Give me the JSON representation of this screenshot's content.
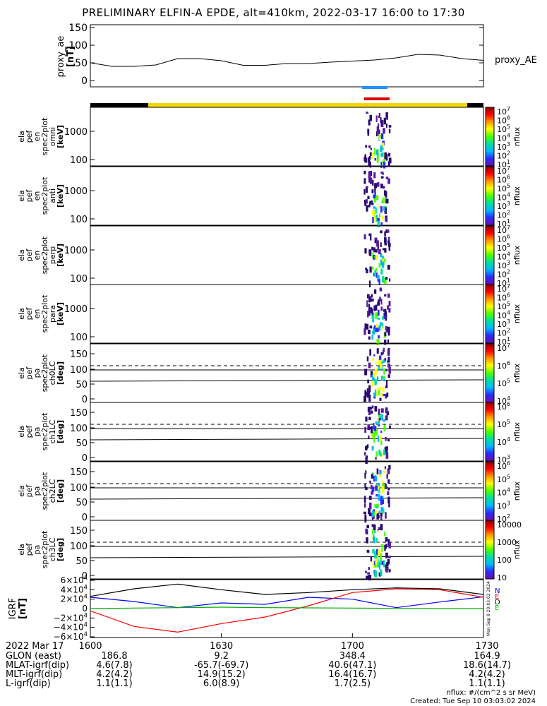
{
  "title": "PRELIMINARY ELFIN-A EPDE, alt=410km, 2022-03-17 16:00 to 17:30",
  "proxy_panel": {
    "ylabel": "proxy_ae",
    "unit": "[nT]",
    "legend": "proxy_AE",
    "ticks": [
      "150",
      "100",
      "50",
      "0"
    ]
  },
  "spec_panels": [
    {
      "label": [
        "ela",
        "pef",
        "en",
        "spec2plot",
        "omni",
        "[keV]"
      ],
      "ticks": [
        "1000",
        "100"
      ],
      "cbar": [
        "10^7",
        "10^6",
        "10^5",
        "10^4",
        "10^3",
        "10^2",
        "10^1"
      ],
      "cbar_label": "nflux"
    },
    {
      "label": [
        "ela",
        "pef",
        "en",
        "spec2plot",
        "anti",
        "[keV]"
      ],
      "ticks": [
        "1000",
        "100"
      ],
      "cbar": [
        "10^7",
        "10^6",
        "10^5",
        "10^4",
        "10^3",
        "10^2",
        "10^1"
      ],
      "cbar_label": "nflux"
    },
    {
      "label": [
        "ela",
        "pef",
        "en",
        "spec2plot",
        "perp",
        "[keV]"
      ],
      "ticks": [
        "1000",
        "100"
      ],
      "cbar": [
        "10^7",
        "10^6",
        "10^5",
        "10^4",
        "10^3",
        "10^2",
        "10^1"
      ],
      "cbar_label": "nflux"
    },
    {
      "label": [
        "ela",
        "pef",
        "en",
        "spec2plot",
        "para",
        "[keV]"
      ],
      "ticks": [
        "1000",
        "100"
      ],
      "cbar": [
        "10^7",
        "10^6",
        "10^5",
        "10^4",
        "10^3",
        "10^2",
        "10^1"
      ],
      "cbar_label": "nflux"
    },
    {
      "label": [
        "ela",
        "pef",
        "pa",
        "spec2plot",
        "ch0LC",
        "[deg]"
      ],
      "ticks": [
        "150",
        "100",
        "50",
        "0"
      ],
      "cbar": [
        "10^7",
        "10^6",
        "10^5",
        "10^4"
      ],
      "cbar_label": "nflux"
    },
    {
      "label": [
        "ela",
        "pef",
        "pa",
        "spec2plot",
        "ch1LC",
        "[deg]"
      ],
      "ticks": [
        "150",
        "100",
        "50",
        "0"
      ],
      "cbar": [
        "10^6",
        "10^5",
        "10^4",
        "10^3"
      ],
      "cbar_label": "nflux"
    },
    {
      "label": [
        "ela",
        "pef",
        "pa",
        "spec2plot",
        "ch2LC",
        "[deg]"
      ],
      "ticks": [
        "150",
        "100",
        "50",
        "0"
      ],
      "cbar": [
        "10^6",
        "10^5",
        "10^4",
        "10^3",
        "10^2"
      ],
      "cbar_label": "nflux"
    },
    {
      "label": [
        "ela",
        "pef",
        "pa",
        "spec2plot",
        "ch3LC",
        "[deg]"
      ],
      "ticks": [
        "150",
        "100",
        "50",
        "0"
      ],
      "cbar": [
        "10000",
        "1000",
        "100",
        "10"
      ],
      "cbar_label": "nflux"
    }
  ],
  "igrf_panel": {
    "ylabel": "IGRF",
    "unit": "[nT]",
    "ticks": [
      "6×10^4",
      "4×10^4",
      "2×10^4",
      "0",
      "−2×10^4",
      "−4×10^4",
      "−6×10^4"
    ],
    "legend": [
      "N",
      "E",
      "D",
      "E"
    ],
    "legend_colors": [
      "#0000ff",
      "#ff0000",
      "#000000",
      "#00cc00"
    ],
    "stamp": "Mon Sep 9 20:03:02 2024"
  },
  "footer": {
    "row_labels": [
      "2022 Mar 17",
      "GLON (east)",
      "MLAT-igrf(dip)",
      "MLT-igrf(dip)",
      "L-igrf(dip)"
    ],
    "columns": [
      {
        "time": "1600",
        "glon": "186.8",
        "mlat": "4.6(7.8)",
        "mlt": "4.2(4.2)",
        "l": "1.1(1.1)"
      },
      {
        "time": "1630",
        "glon": "9.2",
        "mlat": "-65.7(-69.7)",
        "mlt": "14.9(15.2)",
        "l": "6.0(8.9)"
      },
      {
        "time": "1700",
        "glon": "348.4",
        "mlat": "40.6(47.1)",
        "mlt": "16.4(16.7)",
        "l": "1.7(2.5)"
      },
      {
        "time": "1730",
        "glon": "164.9",
        "mlat": "18.6(14.7)",
        "mlt": "4.2(4.2)",
        "l": "1.1(1.1)"
      }
    ],
    "note_units": "nflux: #/(cm^2 s sr MeV)",
    "note_created": "Created: Tue Sep 10 03:03:02 2024"
  },
  "colors": {
    "bar_black": "#000000",
    "bar_yellow": "#f2d800",
    "blue_mark": "#1e90ff",
    "red_mark": "#e00000",
    "igrf_N": "#0000ff",
    "igrf_D": "#ff0000",
    "igrf_E": "#00aa00",
    "igrf_total": "#000000"
  },
  "chart_data": {
    "type": "line",
    "time_range": [
      "16:00",
      "17:30"
    ],
    "proxy_ae": {
      "ylim": [
        0,
        150
      ],
      "x_min": [
        0,
        5,
        10,
        15,
        20,
        25,
        30,
        35,
        40,
        45,
        50,
        55,
        60,
        65,
        70,
        75,
        80,
        85,
        90
      ],
      "values": [
        50,
        40,
        40,
        44,
        62,
        62,
        56,
        43,
        43,
        48,
        48,
        52,
        55,
        58,
        64,
        74,
        72,
        62,
        57
      ]
    },
    "igrf": {
      "ylim": [
        -60000,
        60000
      ],
      "x_min": [
        0,
        10,
        20,
        30,
        40,
        50,
        60,
        70,
        80,
        90
      ],
      "series": [
        {
          "name": "N",
          "values": [
            24000,
            15000,
            2000,
            12000,
            9000,
            24000,
            20000,
            2000,
            14000,
            25000
          ]
        },
        {
          "name": "D",
          "values": [
            -5000,
            -38000,
            -50000,
            -32000,
            -18000,
            6000,
            34000,
            42000,
            40000,
            24000
          ]
        },
        {
          "name": "E",
          "values": [
            0,
            1000,
            2000,
            3000,
            2000,
            1500,
            1000,
            500,
            0,
            0
          ]
        },
        {
          "name": "total",
          "values": [
            26000,
            42000,
            52000,
            40000,
            30000,
            34000,
            40000,
            44000,
            42000,
            30000
          ]
        }
      ]
    }
  }
}
